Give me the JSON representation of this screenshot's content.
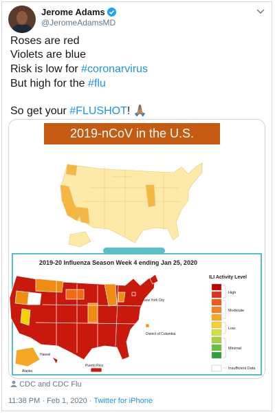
{
  "author": {
    "name": "Jerome Adams",
    "handle": "@JeromeAdamsMD"
  },
  "tweet": {
    "lines": [
      {
        "text": "Roses are red"
      },
      {
        "text": "Violets are blue"
      },
      {
        "text": "Risk is low for ",
        "tag": "#coronarvirus"
      },
      {
        "text": "But high for the ",
        "tag": "#flu"
      },
      {
        "text": "So get your ",
        "tag": "#FLUSHOT",
        "after": "! 🙏🏽"
      }
    ]
  },
  "image_top": {
    "title": "2019-nCoV in the U.S."
  },
  "image_bottom": {
    "title": "2019-20 Influenza Season Week 4 ending Jan 25, 2020",
    "legend_title": "ILI Activity Level",
    "legend": [
      "High",
      "Moderate",
      "Low",
      "Minimal",
      "Insufficient Data"
    ],
    "places": [
      "New York City",
      "District of Columbia",
      "Hawaii",
      "Alaska",
      "Puerto Rico"
    ]
  },
  "tagged": "CDC and CDC Flu",
  "footer": {
    "time": "11:38 PM · Feb 1, 2020 ·",
    "source": "Twitter for iPhone"
  }
}
